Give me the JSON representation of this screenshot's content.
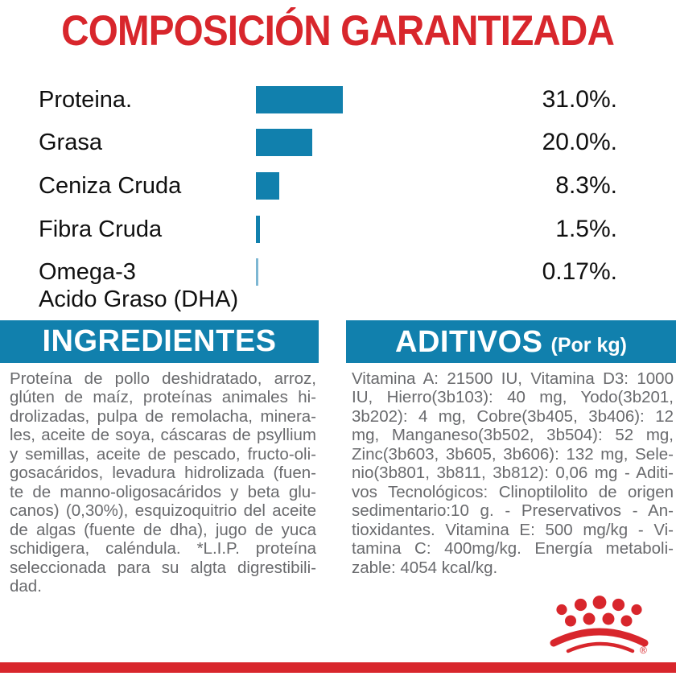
{
  "title": "COMPOSICIÓN GARANTIZADA",
  "chart_data": {
    "type": "bar",
    "orientation": "horizontal",
    "title": "COMPOSICIÓN GARANTIZADA",
    "categories": [
      "Proteina.",
      "Grasa",
      "Ceniza Cruda",
      "Fibra Cruda",
      "Omega-3 Acido Graso (DHA)"
    ],
    "category_lines": [
      [
        "Proteina."
      ],
      [
        "Grasa"
      ],
      [
        "Ceniza Cruda"
      ],
      [
        "Fibra Cruda"
      ],
      [
        "Omega-3",
        "Acido Graso (DHA)"
      ]
    ],
    "values": [
      31.0,
      20.0,
      8.3,
      1.5,
      0.17
    ],
    "value_labels": [
      "31.0%.",
      "20.0%.",
      "8.3%.",
      "1.5%.",
      "0.17%."
    ],
    "unit": "percent",
    "xlim": [
      0,
      31
    ],
    "grid": false,
    "legend": false,
    "bar_colors": [
      "#1180ad",
      "#1180ad",
      "#1180ad",
      "#1180ad",
      "#7db7d3"
    ]
  },
  "sections": {
    "ingredients": {
      "header": "INGREDIENTES",
      "lines": [
        "Proteína de pollo deshidratado, arroz,",
        "glúten de maíz, proteínas animales hi-",
        "drolizadas, pulpa de remolacha, minera-",
        "les, aceite de soya,  cáscaras de psyllium",
        "y semillas, aceite de pescado, fructo-oli-",
        "gosacáridos,  levadura hidrolizada (fuen-",
        "te de manno-oligosacáridos y beta glu-",
        "canos) (0,30%), esquizoquitrio del aceite",
        "de algas (fuente de dha), jugo de yuca",
        "schidigera,  caléndula. *L.I.P. proteína",
        "seleccionada para su algta digrestibili-",
        "dad."
      ]
    },
    "additives": {
      "header": "ADITIVOS",
      "header_suffix": "(Por kg)",
      "lines": [
        "Vitamina A: 21500 IU, Vitamina D3: 1000",
        "IU, Hierro(3b103): 40 mg, Yodo(3b201,",
        "3b202): 4 mg, Cobre(3b405, 3b406): 12",
        "mg, Manganeso(3b502, 3b504): 52 mg,",
        "Zinc(3b603, 3b605, 3b606): 132 mg, Sele-",
        "nio(3b801, 3b811, 3b812): 0,06 mg - Aditi-",
        "vos Tecnológicos: Clinoptilolito de origen",
        "sedimentario:10 g. - Preservativos - An-",
        "tioxidantes. Vitamina E: 500 mg/kg -  Vi-",
        "tamina C: 400mg/kg. Energía metaboli-",
        "zable: 4054 kcal/kg."
      ]
    }
  },
  "footer": {
    "logo": "royal-canin-crown",
    "trademark": "®"
  },
  "colors": {
    "red": "#d8262c",
    "blue": "#1180ad",
    "light_blue": "#7db7d3",
    "text_gray": "#696a6d",
    "text_black": "#101010"
  }
}
